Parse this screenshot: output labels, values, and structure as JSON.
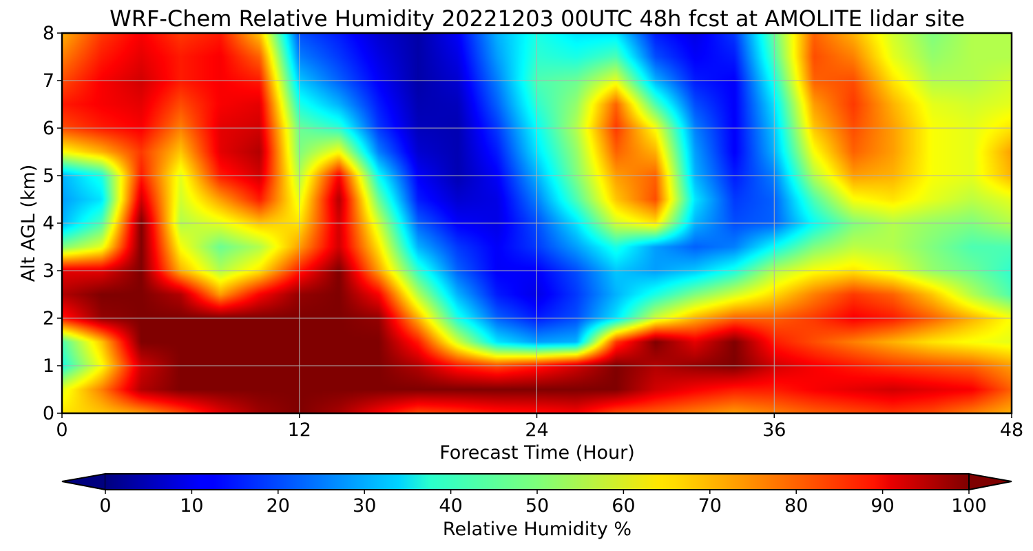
{
  "chart_data": {
    "type": "heatmap",
    "title": "WRF-Chem Relative Humidity 20221203 00UTC 48h fcst at AMOLITE lidar site",
    "xlabel": "Forecast Time (Hour)",
    "ylabel": "Alt AGL (km)",
    "xlim": [
      0,
      48
    ],
    "ylim": [
      0,
      8
    ],
    "x_ticks": [
      "0",
      "12",
      "24",
      "36",
      "48"
    ],
    "y_ticks": [
      "0",
      "1",
      "2",
      "3",
      "4",
      "5",
      "6",
      "7",
      "8"
    ],
    "grid": true,
    "colormap": "jet",
    "colorbar": {
      "label": "Relative Humidity %",
      "range": [
        0,
        100
      ],
      "ticks": [
        "0",
        "10",
        "20",
        "30",
        "40",
        "50",
        "60",
        "70",
        "80",
        "90",
        "100"
      ],
      "extend": "both",
      "orientation": "horizontal",
      "placement": "bottom"
    },
    "x": [
      0,
      2,
      4,
      6,
      8,
      10,
      12,
      14,
      16,
      18,
      20,
      22,
      24,
      26,
      28,
      30,
      32,
      34,
      36,
      38,
      40,
      42,
      44,
      46,
      48
    ],
    "y": [
      0,
      0.5,
      1,
      1.5,
      2,
      2.5,
      3,
      3.5,
      4,
      4.5,
      5,
      5.5,
      6,
      6.5,
      7,
      7.5,
      8
    ],
    "values": [
      [
        65,
        68,
        72,
        80,
        90,
        97,
        100,
        96,
        88,
        80,
        82,
        85,
        86,
        88,
        80,
        78,
        75,
        72,
        75,
        78,
        80,
        82,
        80,
        75,
        70
      ],
      [
        60,
        75,
        95,
        100,
        100,
        100,
        100,
        100,
        100,
        100,
        100,
        100,
        100,
        100,
        100,
        92,
        88,
        85,
        85,
        88,
        90,
        92,
        90,
        88,
        78
      ],
      [
        40,
        62,
        92,
        100,
        100,
        100,
        100,
        100,
        100,
        95,
        85,
        80,
        85,
        92,
        100,
        95,
        98,
        100,
        92,
        88,
        85,
        82,
        80,
        78,
        72
      ],
      [
        45,
        68,
        100,
        100,
        100,
        100,
        100,
        100,
        100,
        85,
        58,
        35,
        28,
        30,
        82,
        100,
        90,
        100,
        85,
        80,
        75,
        70,
        65,
        62,
        60
      ],
      [
        85,
        98,
        100,
        100,
        100,
        100,
        100,
        100,
        98,
        70,
        40,
        22,
        15,
        20,
        35,
        58,
        70,
        78,
        78,
        82,
        88,
        85,
        78,
        70,
        62
      ],
      [
        95,
        100,
        100,
        95,
        72,
        88,
        98,
        100,
        88,
        55,
        30,
        15,
        10,
        18,
        30,
        40,
        50,
        58,
        66,
        75,
        82,
        78,
        68,
        55,
        45
      ],
      [
        90,
        90,
        100,
        70,
        55,
        65,
        85,
        100,
        72,
        42,
        22,
        12,
        12,
        20,
        32,
        28,
        32,
        40,
        55,
        62,
        65,
        60,
        52,
        48,
        42
      ],
      [
        50,
        60,
        100,
        62,
        48,
        55,
        72,
        92,
        65,
        30,
        18,
        12,
        18,
        28,
        40,
        28,
        22,
        25,
        38,
        50,
        56,
        55,
        50,
        45,
        45
      ],
      [
        30,
        45,
        100,
        55,
        60,
        68,
        65,
        92,
        58,
        22,
        12,
        10,
        20,
        35,
        58,
        65,
        30,
        20,
        22,
        38,
        50,
        55,
        52,
        50,
        55
      ],
      [
        28,
        35,
        92,
        58,
        72,
        85,
        60,
        95,
        48,
        15,
        8,
        10,
        25,
        45,
        68,
        80,
        35,
        18,
        22,
        45,
        62,
        65,
        60,
        56,
        60
      ],
      [
        30,
        40,
        85,
        60,
        85,
        92,
        55,
        88,
        38,
        12,
        5,
        12,
        30,
        50,
        72,
        78,
        30,
        15,
        25,
        55,
        72,
        70,
        62,
        60,
        70
      ],
      [
        62,
        70,
        82,
        68,
        90,
        95,
        50,
        62,
        25,
        8,
        5,
        15,
        35,
        52,
        78,
        70,
        28,
        12,
        30,
        62,
        78,
        72,
        62,
        60,
        72
      ],
      [
        80,
        85,
        88,
        75,
        90,
        92,
        48,
        42,
        18,
        6,
        5,
        18,
        38,
        55,
        82,
        62,
        25,
        12,
        32,
        68,
        80,
        72,
        62,
        60,
        65
      ],
      [
        85,
        88,
        90,
        80,
        88,
        90,
        40,
        30,
        15,
        5,
        6,
        22,
        42,
        52,
        78,
        45,
        20,
        12,
        35,
        72,
        82,
        70,
        60,
        58,
        60
      ],
      [
        80,
        88,
        92,
        85,
        88,
        85,
        32,
        22,
        12,
        4,
        8,
        25,
        45,
        48,
        60,
        30,
        15,
        12,
        40,
        78,
        80,
        65,
        55,
        55,
        58
      ],
      [
        75,
        85,
        90,
        85,
        88,
        78,
        25,
        18,
        10,
        4,
        10,
        28,
        42,
        40,
        45,
        20,
        12,
        15,
        45,
        80,
        75,
        60,
        52,
        55,
        55
      ],
      [
        70,
        82,
        88,
        82,
        85,
        68,
        20,
        15,
        8,
        4,
        12,
        30,
        40,
        35,
        35,
        15,
        10,
        18,
        48,
        78,
        70,
        58,
        50,
        55,
        55
      ]
    ]
  }
}
